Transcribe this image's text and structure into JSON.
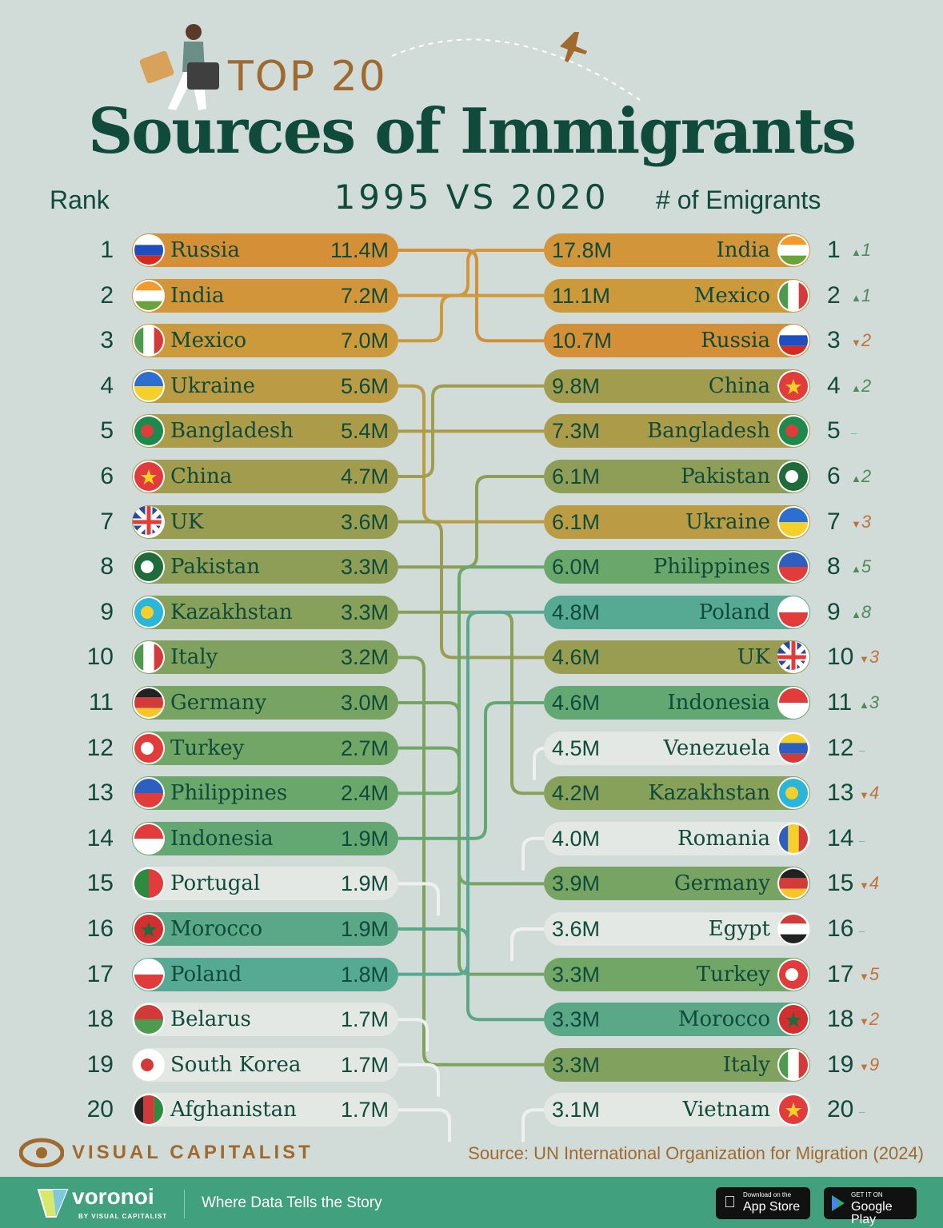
{
  "header": {
    "title_top": "TOP 20",
    "title_main": "Sources of Immigrants",
    "years": "1995  VS  2020",
    "rank_label": "Rank",
    "emigrants_label": "# of Emigrants"
  },
  "chart_data": {
    "type": "bump",
    "title": "TOP 20 Sources of Immigrants",
    "subtitle": "1995 VS 2020",
    "unit": "M",
    "left_year": "1995",
    "right_year": "2020",
    "y1995": [
      {
        "rank": 1,
        "country": "Russia",
        "value": 11.4,
        "color": "#d48f37"
      },
      {
        "rank": 2,
        "country": "India",
        "value": 7.2,
        "color": "#d3953a"
      },
      {
        "rank": 3,
        "country": "Mexico",
        "value": 7.0,
        "color": "#cc993b"
      },
      {
        "rank": 4,
        "country": "Ukraine",
        "value": 5.6,
        "color": "#bb9c44"
      },
      {
        "rank": 5,
        "country": "Bangladesh",
        "value": 5.4,
        "color": "#ac9c4a"
      },
      {
        "rank": 6,
        "country": "China",
        "value": 4.7,
        "color": "#a29c4e"
      },
      {
        "rank": 7,
        "country": "UK",
        "value": 3.6,
        "color": "#989d52"
      },
      {
        "rank": 8,
        "country": "Pakistan",
        "value": 3.3,
        "color": "#8e9e56"
      },
      {
        "rank": 9,
        "country": "Kazakhstan",
        "value": 3.3,
        "color": "#87a05a"
      },
      {
        "rank": 10,
        "country": "Italy",
        "value": 3.2,
        "color": "#80a25e"
      },
      {
        "rank": 11,
        "country": "Germany",
        "value": 3.0,
        "color": "#78a463"
      },
      {
        "rank": 12,
        "country": "Turkey",
        "value": 2.7,
        "color": "#71a666"
      },
      {
        "rank": 13,
        "country": "Philippines",
        "value": 2.4,
        "color": "#6aa76b"
      },
      {
        "rank": 14,
        "country": "Indonesia",
        "value": 1.9,
        "color": "#63a872"
      },
      {
        "rank": 15,
        "country": "Portugal",
        "value": 1.9,
        "color": "#e4e8e5"
      },
      {
        "rank": 16,
        "country": "Morocco",
        "value": 1.9,
        "color": "#5ba888"
      },
      {
        "rank": 17,
        "country": "Poland",
        "value": 1.8,
        "color": "#56a993"
      },
      {
        "rank": 18,
        "country": "Belarus",
        "value": 1.7,
        "color": "#e4e8e5"
      },
      {
        "rank": 19,
        "country": "South Korea",
        "value": 1.7,
        "color": "#e4e8e5"
      },
      {
        "rank": 20,
        "country": "Afghanistan",
        "value": 1.7,
        "color": "#e4e8e5"
      }
    ],
    "y2020": [
      {
        "rank": 1,
        "country": "India",
        "value": 17.8,
        "change": "1",
        "direction": "up"
      },
      {
        "rank": 2,
        "country": "Mexico",
        "value": 11.1,
        "change": "1",
        "direction": "up"
      },
      {
        "rank": 3,
        "country": "Russia",
        "value": 10.7,
        "change": "2",
        "direction": "down"
      },
      {
        "rank": 4,
        "country": "China",
        "value": 9.8,
        "change": "2",
        "direction": "up"
      },
      {
        "rank": 5,
        "country": "Bangladesh",
        "value": 7.3,
        "change": "",
        "direction": "same"
      },
      {
        "rank": 6,
        "country": "Pakistan",
        "value": 6.1,
        "change": "2",
        "direction": "up"
      },
      {
        "rank": 7,
        "country": "Ukraine",
        "value": 6.1,
        "change": "3",
        "direction": "down"
      },
      {
        "rank": 8,
        "country": "Philippines",
        "value": 6.0,
        "change": "5",
        "direction": "up"
      },
      {
        "rank": 9,
        "country": "Poland",
        "value": 4.8,
        "change": "8",
        "direction": "up"
      },
      {
        "rank": 10,
        "country": "UK",
        "value": 4.6,
        "change": "3",
        "direction": "down"
      },
      {
        "rank": 11,
        "country": "Indonesia",
        "value": 4.6,
        "change": "3",
        "direction": "up"
      },
      {
        "rank": 12,
        "country": "Venezuela",
        "value": 4.5,
        "change": "",
        "direction": "same",
        "color": "#e4e8e5"
      },
      {
        "rank": 13,
        "country": "Kazakhstan",
        "value": 4.2,
        "change": "4",
        "direction": "down"
      },
      {
        "rank": 14,
        "country": "Romania",
        "value": 4.0,
        "change": "",
        "direction": "same",
        "color": "#e4e8e5"
      },
      {
        "rank": 15,
        "country": "Germany",
        "value": 3.9,
        "change": "4",
        "direction": "down"
      },
      {
        "rank": 16,
        "country": "Egypt",
        "value": 3.6,
        "change": "",
        "direction": "same",
        "color": "#e4e8e5"
      },
      {
        "rank": 17,
        "country": "Turkey",
        "value": 3.3,
        "change": "5",
        "direction": "down"
      },
      {
        "rank": 18,
        "country": "Morocco",
        "value": 3.3,
        "change": "2",
        "direction": "down"
      },
      {
        "rank": 19,
        "country": "Italy",
        "value": 3.3,
        "change": "9",
        "direction": "down"
      },
      {
        "rank": 20,
        "country": "Vietnam",
        "value": 3.1,
        "change": "",
        "direction": "same",
        "color": "#e4e8e5"
      }
    ],
    "colors": {
      "up": "#4e8a5a",
      "down": "#c0733a",
      "same": "#5cc0a0",
      "text": "#0f4a3a"
    }
  },
  "footer": {
    "source": "Source: UN International Organization for Migration (2024)",
    "brand": "VISUAL CAPITALIST",
    "voronoi": "voronoi",
    "voronoi_sub": "BY VISUAL CAPITALIST",
    "tagline": "Where Data Tells the Story",
    "appstore_small": "Download on the",
    "appstore": "App Store",
    "googleplay_small": "GET IT ON",
    "googleplay": "Google Play"
  }
}
